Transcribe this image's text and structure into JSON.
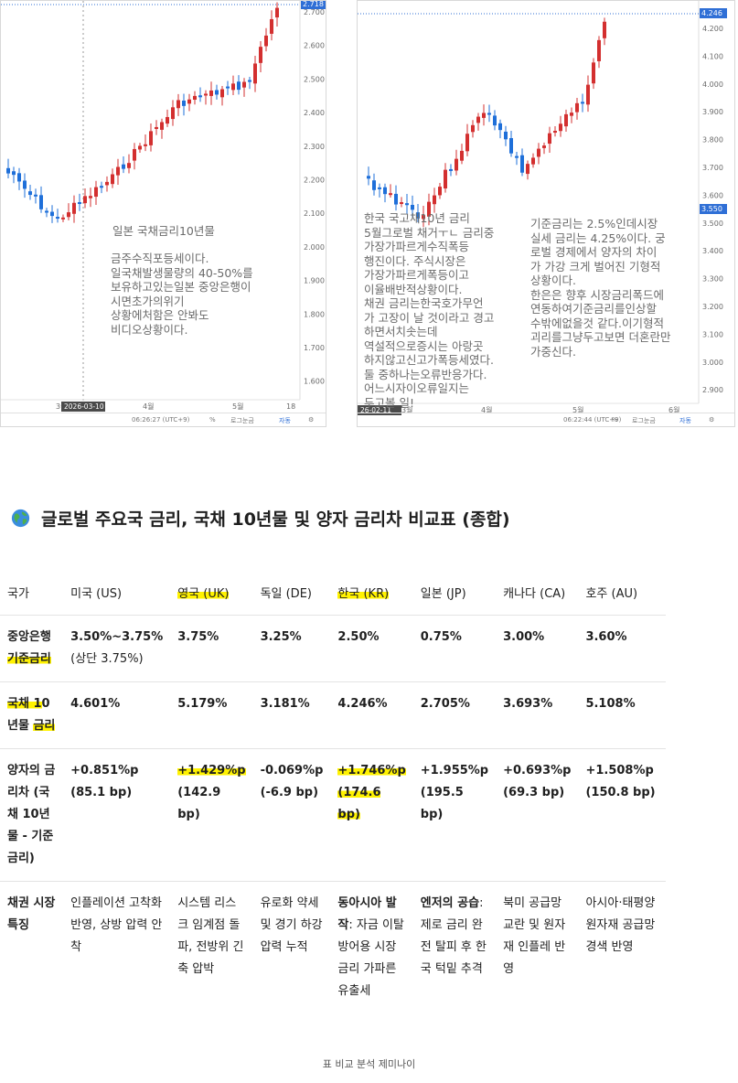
{
  "left_chart": {
    "last_price": "2.718",
    "y_ticks": [
      "2.700",
      "2.600",
      "2.500",
      "2.400",
      "2.300",
      "2.200",
      "2.100",
      "2.000",
      "1.900",
      "1.800",
      "1.700",
      "1.600"
    ],
    "x_ticks": [
      "3월",
      "4월",
      "5월",
      "18"
    ],
    "date_tag": "2026-03-10",
    "annotation_title": "일본 국채금리10년물",
    "annotation_body": "금주수직포등세이다.\n일국채발생물량의 40-50%를\n보유하고있는일본 중앙은행이\n시면초가의위기\n상황에처함은 안봐도\n비디오상황이다.",
    "status_time": "06:26:27 (UTC+9)",
    "status_pct": "%",
    "status_log": "로그눈금",
    "status_auto": "자동",
    "up_color": "#d32f2f",
    "down_color": "#1e6fd9"
  },
  "right_chart": {
    "last_price": "4.246",
    "marker_price": "3.550",
    "y_ticks": [
      "4.200",
      "4.100",
      "4.000",
      "3.900",
      "3.800",
      "3.700",
      "3.600",
      "3.500",
      "3.400",
      "3.300",
      "3.200",
      "3.100",
      "3.000",
      "2.900"
    ],
    "x_ticks": [
      "3월",
      "4월",
      "5월",
      "6월"
    ],
    "date_tag": "26-02-11",
    "annotation_left": "한국 국고채10년 금리\n5월그로벌 채거ㅜㄴ 금리중\n가장가파르게수직폭등\n행진이다. 주식시장은\n가장가파르게폭등이고\n이율배반적상황이다.\n채권 금리는한국호가무언\n가 고장이  날 것이라고 경고\n하면서치솟는데\n역설적으로증시는 아랑곳\n하지않고신고가폭등세였다.\n둘 중하나는오류반응가다.\n어느시자이오류일지는\n두고볼 일!",
    "annotation_right": "기준금리는 2.5%인데시장\n실세 금리는 4.25%이다. 궁\n로벌 경제에서 양자의 차이\n가 가강 크게 벌어진 기형적\n상황이다.\n한은은 향후 시장금리폭드에\n연동하여기준금리를인상할\n수밖에없을것 같다.이기형적\n괴리를그냥두고보면 더혼란만\n가중신다.",
    "status_time": "06:22:44 (UTC+9)",
    "status_pct": "%",
    "status_log": "로그눈금",
    "status_auto": "자동"
  },
  "heading": {
    "icon": "globe-icon",
    "text": "글로벌 주요국 금리, 국채 10년물 및 양자 금리차 비교표 (종합)"
  },
  "table": {
    "headers": [
      "국가",
      "미국 (US)",
      "영국 (UK)",
      "독일 (DE)",
      "한국 (KR)",
      "일본 (JP)",
      "캐나다 (CA)",
      "호주 (AU)"
    ],
    "row_policy": {
      "label": "중앙은행 기준금리",
      "values": [
        "3.50%~3.75%",
        "3.75%",
        "3.25%",
        "2.50%",
        "0.75%",
        "3.00%",
        "3.60%"
      ],
      "us_note": "(상단 3.75%)"
    },
    "row_bond": {
      "label": "국채 10년물 금리",
      "values": [
        "4.601%",
        "5.179%",
        "3.181%",
        "4.246%",
        "2.705%",
        "3.693%",
        "5.108%"
      ]
    },
    "row_spread": {
      "label": "양자의 금리차 (국채 10년물 - 기준금리)",
      "values": [
        "+0.851%p",
        "+1.429%p",
        "-0.069%p",
        "+1.746%p",
        "+1.955%p",
        "+0.693%p",
        "+1.508%p"
      ],
      "bp": [
        "(85.1 bp)",
        "(142.9 bp)",
        "(-6.9 bp)",
        "(174.6 bp)",
        "(195.5 bp)",
        "(69.3 bp)",
        "(150.8 bp)"
      ]
    },
    "row_feature": {
      "label": "채권 시장 특징",
      "us": "인플레이션 고착화 반영, 상방 압력 안착",
      "uk": "시스템 리스크 임계점 돌파, 전방위 긴축 압박",
      "de": "유로화 약세 및 경기 하강 압력 누적",
      "kr_bold": "동아시아 발작",
      "kr_rest": ": 자금 이탈 방어용 시장 금리 가파른 유출세",
      "jp_bold": "엔저의 공습",
      "jp_rest": ": 제로 금리 완전 탈피 후 한국 턱밑 추격",
      "ca": "북미 공급망 교란 및 원자재 인플레 반영",
      "au": "아시아·태평양 원자재 공급망 경색 반영"
    },
    "highlight_color": "#fff200"
  },
  "caption": "표 비교 분석 제미나이"
}
